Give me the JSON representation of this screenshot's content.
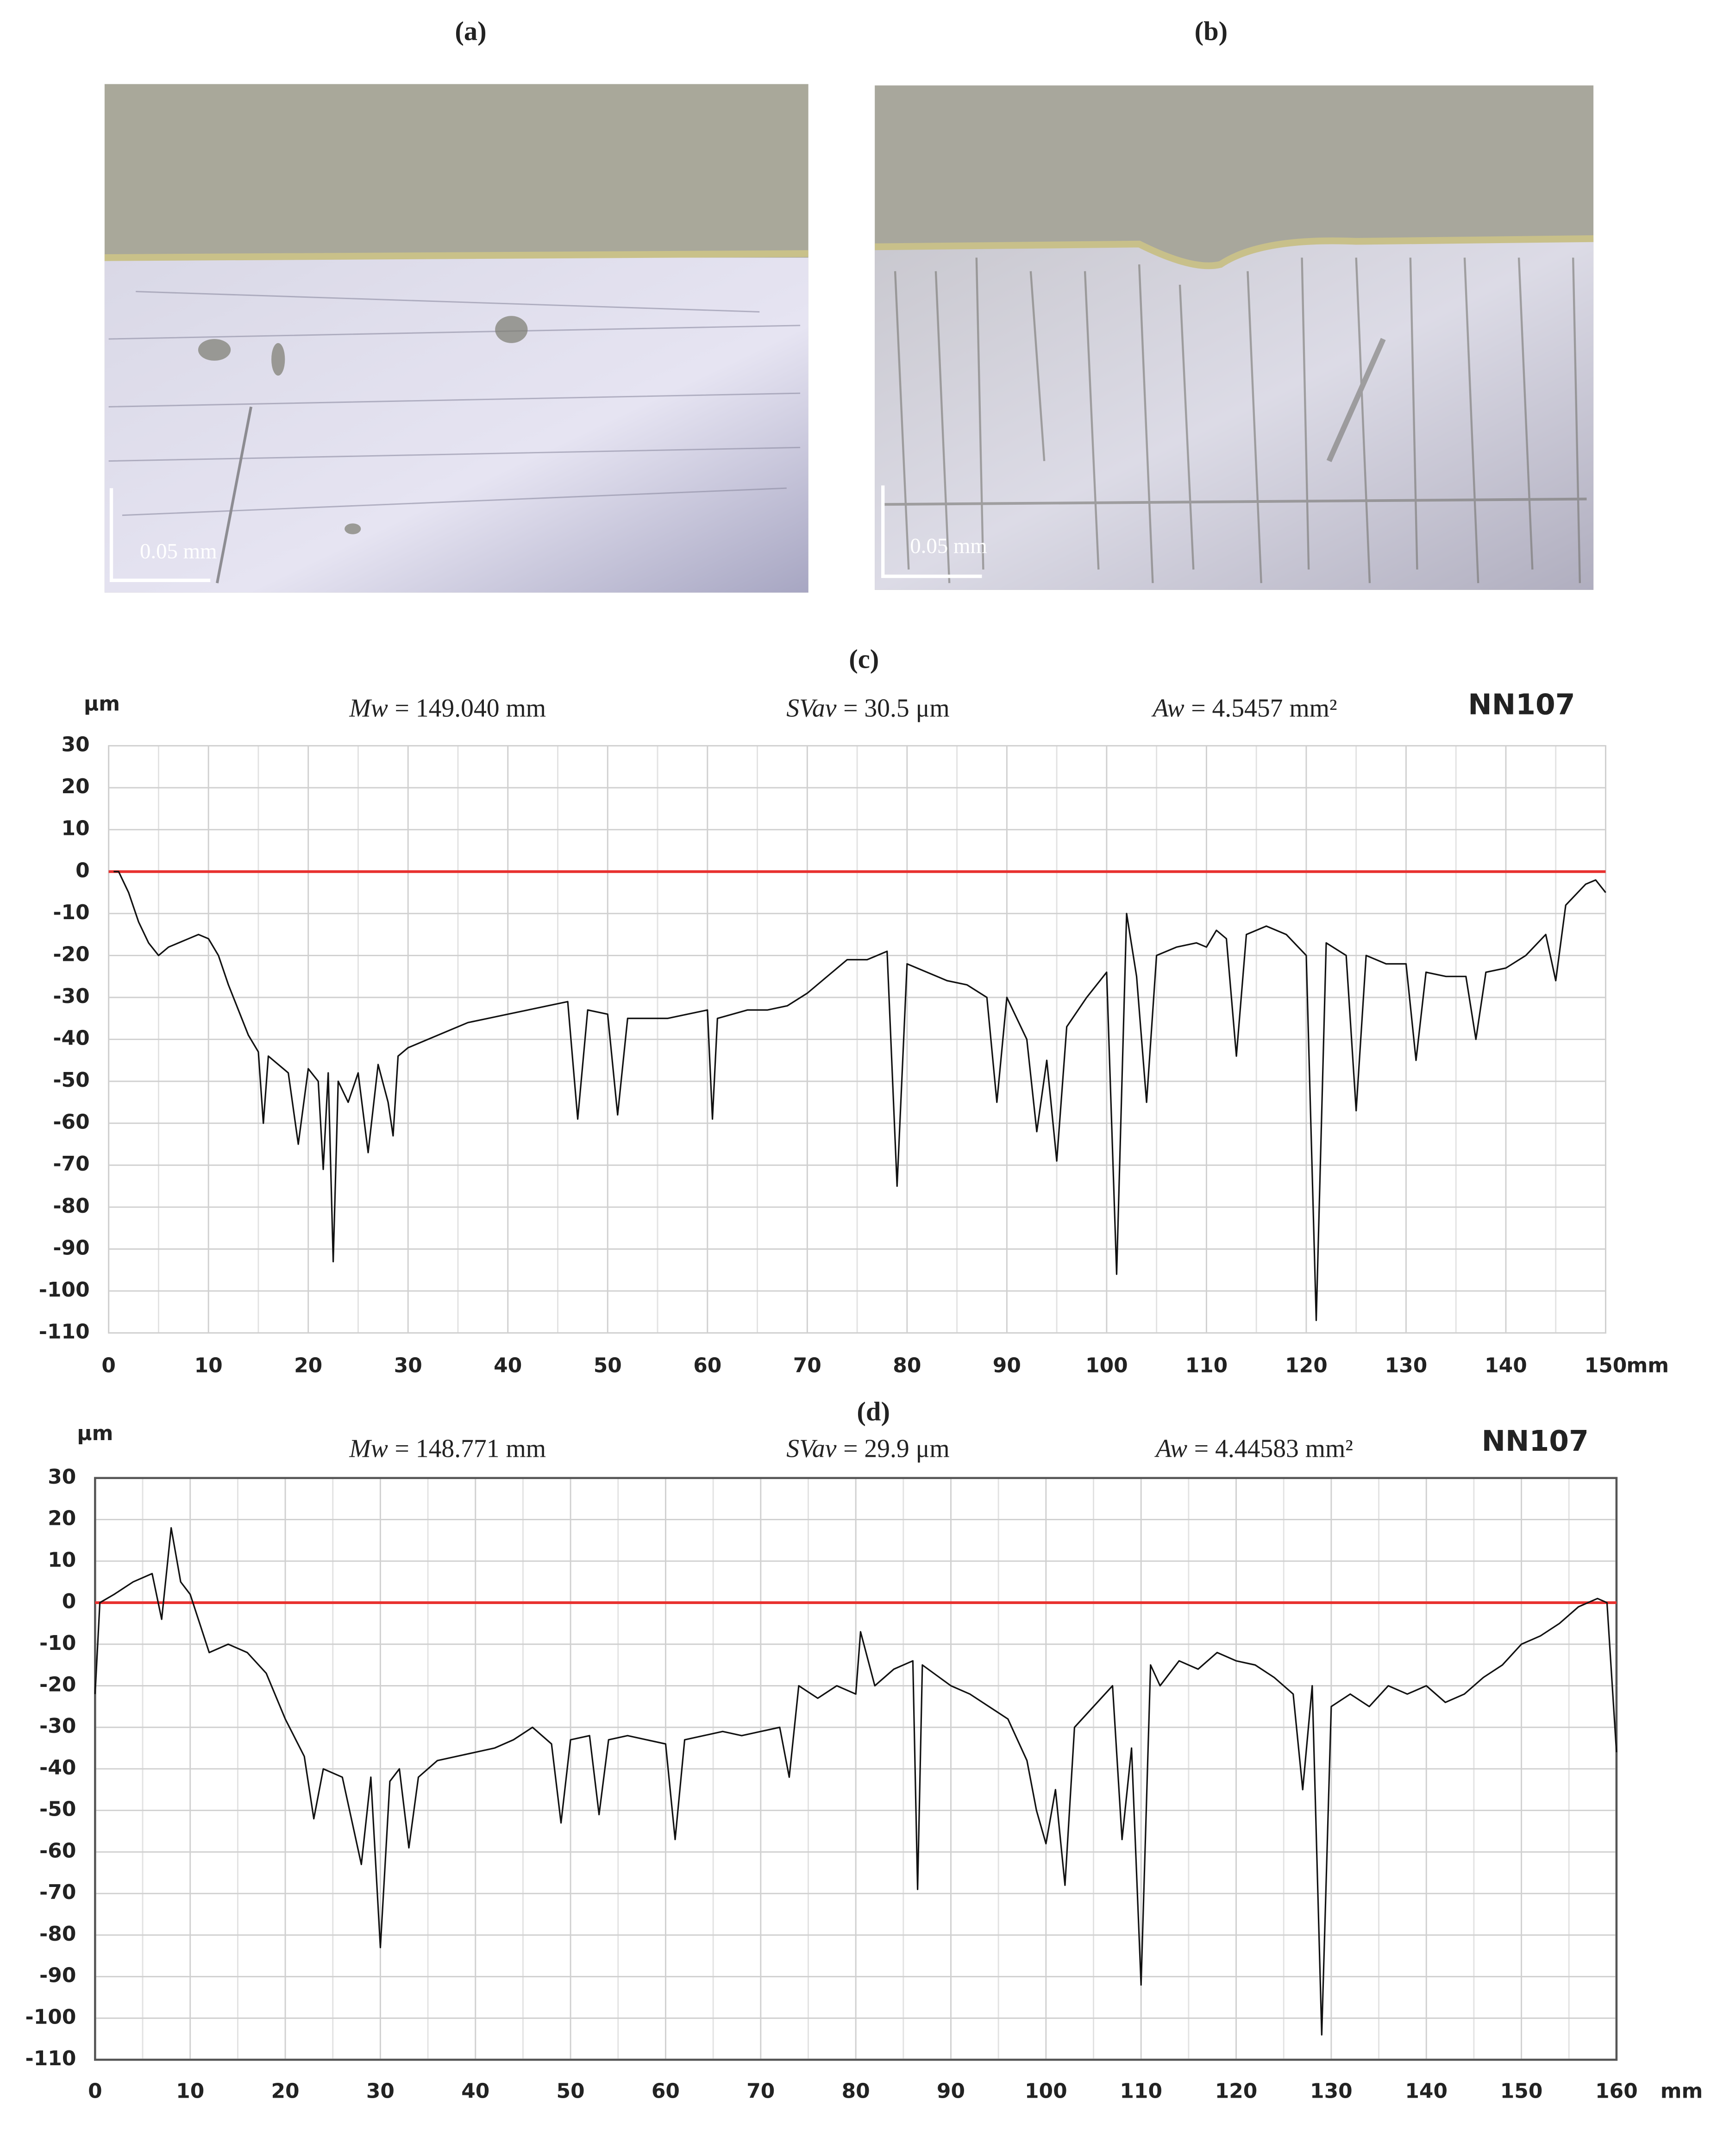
{
  "photos": [
    {
      "label": "(a)",
      "scale_bar": "0.05 mm"
    },
    {
      "label": "(b)",
      "scale_bar": "0.05 mm"
    }
  ],
  "chart_data": [
    {
      "type": "line",
      "label": "(c)",
      "y_unit": "μm",
      "x_unit": "mm",
      "sample": "NN107",
      "annotations": [
        {
          "symbol": "Mw",
          "text": "= 149.040 mm"
        },
        {
          "symbol": "SVav",
          "text": "= 30.5 μm"
        },
        {
          "symbol": "Aw",
          "text": "= 4.5457 mm²"
        }
      ],
      "xlim": [
        0,
        150
      ],
      "xticks": [
        0,
        10,
        20,
        30,
        40,
        50,
        60,
        70,
        80,
        90,
        100,
        110,
        120,
        130,
        140,
        150
      ],
      "ylim": [
        -110,
        30
      ],
      "yticks": [
        30,
        20,
        10,
        0,
        -10,
        -20,
        -30,
        -40,
        -50,
        -60,
        -70,
        -80,
        -90,
        -100,
        -110
      ],
      "grid": true,
      "frame": false,
      "reference_line": {
        "value": 0,
        "color": "#e8312f"
      },
      "color": "#111111",
      "x": [
        0.5,
        1,
        2,
        3,
        4,
        5,
        6,
        7,
        8,
        9,
        10,
        11,
        12,
        13,
        14,
        15,
        15.5,
        16,
        17,
        18,
        19,
        20,
        21,
        21.5,
        22,
        22.5,
        23,
        24,
        25,
        26,
        27,
        28,
        28.5,
        29,
        30,
        32,
        34,
        36,
        38,
        40,
        42,
        44,
        46,
        47,
        48,
        50,
        51,
        52,
        54,
        56,
        58,
        60,
        60.5,
        61,
        64,
        66,
        68,
        70,
        72,
        74,
        76,
        78,
        79,
        80,
        82,
        84,
        86,
        88,
        89,
        90,
        92,
        93,
        94,
        95,
        96,
        98,
        100,
        101,
        102,
        103,
        104,
        105,
        107,
        109,
        110,
        111,
        112,
        113,
        114,
        116,
        118,
        120,
        121,
        122,
        124,
        125,
        126,
        128,
        130,
        131,
        132,
        134,
        136,
        137,
        138,
        140,
        142,
        144,
        145,
        146,
        148,
        149,
        150
      ],
      "values": [
        0,
        0,
        -5,
        -12,
        -17,
        -20,
        -18,
        -17,
        -16,
        -15,
        -16,
        -20,
        -27,
        -33,
        -39,
        -43,
        -60,
        -44,
        -46,
        -48,
        -65,
        -47,
        -50,
        -71,
        -48,
        -93,
        -50,
        -55,
        -48,
        -67,
        -46,
        -55,
        -63,
        -44,
        -42,
        -40,
        -38,
        -36,
        -35,
        -34,
        -33,
        -32,
        -31,
        -59,
        -33,
        -34,
        -58,
        -35,
        -35,
        -35,
        -34,
        -33,
        -59,
        -35,
        -33,
        -33,
        -32,
        -29,
        -25,
        -21,
        -21,
        -19,
        -75,
        -22,
        -24,
        -26,
        -27,
        -30,
        -55,
        -30,
        -40,
        -62,
        -45,
        -69,
        -37,
        -30,
        -24,
        -96,
        -10,
        -25,
        -55,
        -20,
        -18,
        -17,
        -18,
        -14,
        -16,
        -44,
        -15,
        -13,
        -15,
        -20,
        -107,
        -17,
        -20,
        -57,
        -20,
        -22,
        -22,
        -45,
        -24,
        -25,
        -25,
        -40,
        -24,
        -23,
        -20,
        -15,
        -26,
        -8,
        -3,
        -2,
        -5
      ]
    },
    {
      "type": "line",
      "label": "(d)",
      "y_unit": "μm",
      "x_unit": "mm",
      "sample": "NN107",
      "annotations": [
        {
          "symbol": "Mw",
          "text": "= 148.771 mm"
        },
        {
          "symbol": "SVav",
          "text": "= 29.9 μm"
        },
        {
          "symbol": "Aw",
          "text": "= 4.44583 mm²"
        }
      ],
      "xlim": [
        0,
        160
      ],
      "xticks": [
        0,
        10,
        20,
        30,
        40,
        50,
        60,
        70,
        80,
        90,
        100,
        110,
        120,
        130,
        140,
        150,
        160
      ],
      "ylim": [
        -110,
        30
      ],
      "yticks": [
        30,
        20,
        10,
        0,
        -10,
        -20,
        -30,
        -40,
        -50,
        -60,
        -70,
        -80,
        -90,
        -100,
        -110
      ],
      "grid": true,
      "frame": true,
      "reference_line": {
        "value": 0,
        "color": "#e8312f"
      },
      "color": "#111111",
      "x": [
        0,
        0.5,
        2,
        4,
        6,
        7,
        8,
        9,
        10,
        11,
        12,
        14,
        16,
        18,
        20,
        22,
        23,
        24,
        26,
        28,
        29,
        30,
        31,
        32,
        33,
        34,
        36,
        38,
        40,
        42,
        44,
        46,
        48,
        49,
        50,
        52,
        53,
        54,
        56,
        58,
        60,
        61,
        62,
        64,
        66,
        68,
        70,
        72,
        73,
        74,
        76,
        78,
        80,
        80.5,
        82,
        84,
        86,
        86.5,
        87,
        90,
        92,
        94,
        96,
        98,
        99,
        100,
        101,
        102,
        103,
        105,
        107,
        108,
        109,
        110,
        111,
        112,
        114,
        116,
        118,
        120,
        122,
        124,
        126,
        127,
        128,
        129,
        130,
        132,
        134,
        136,
        138,
        140,
        142,
        144,
        146,
        148,
        150,
        152,
        154,
        156,
        158,
        159,
        160
      ],
      "values": [
        -22,
        0,
        2,
        5,
        7,
        -4,
        18,
        5,
        2,
        -5,
        -12,
        -10,
        -12,
        -17,
        -28,
        -37,
        -52,
        -40,
        -42,
        -63,
        -42,
        -83,
        -43,
        -40,
        -59,
        -42,
        -38,
        -37,
        -36,
        -35,
        -33,
        -30,
        -34,
        -53,
        -33,
        -32,
        -51,
        -33,
        -32,
        -33,
        -34,
        -57,
        -33,
        -32,
        -31,
        -32,
        -31,
        -30,
        -42,
        -20,
        -23,
        -20,
        -22,
        -7,
        -20,
        -16,
        -14,
        -69,
        -15,
        -20,
        -22,
        -25,
        -28,
        -38,
        -50,
        -58,
        -45,
        -68,
        -30,
        -25,
        -20,
        -57,
        -35,
        -92,
        -15,
        -20,
        -14,
        -16,
        -12,
        -14,
        -15,
        -18,
        -22,
        -45,
        -20,
        -104,
        -25,
        -22,
        -25,
        -20,
        -22,
        -20,
        -24,
        -22,
        -18,
        -15,
        -10,
        -8,
        -5,
        -1,
        1,
        0,
        -36
      ]
    }
  ]
}
